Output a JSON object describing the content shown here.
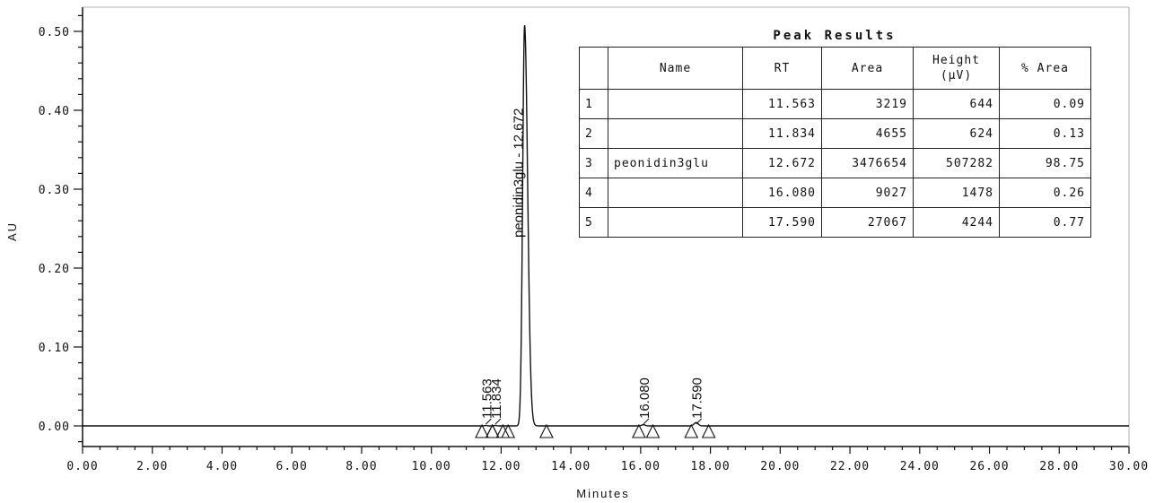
{
  "chart_data": {
    "type": "line",
    "title": "",
    "xlabel": "Minutes",
    "ylabel": "AU",
    "xlim": [
      0,
      30
    ],
    "ylim": [
      -0.02,
      0.525
    ],
    "x_ticks": [
      "0.00",
      "2.00",
      "4.00",
      "6.00",
      "8.00",
      "10.00",
      "12.00",
      "14.00",
      "16.00",
      "18.00",
      "20.00",
      "22.00",
      "24.00",
      "26.00",
      "28.00",
      "30.00"
    ],
    "y_ticks": [
      "0.00",
      "0.10",
      "0.20",
      "0.30",
      "0.40",
      "0.50"
    ],
    "baseline": 0.0,
    "peaks": [
      {
        "label": "11.563",
        "rt": 11.563,
        "height": 0.0006,
        "start": 11.45,
        "end": 11.75
      },
      {
        "label": "11.834",
        "rt": 11.834,
        "height": 0.0006,
        "start": 11.75,
        "end": 12.05
      },
      {
        "label": "peonidin3glu - 12.672",
        "rt": 12.672,
        "height": 0.5073,
        "start": 12.2,
        "end": 13.3
      },
      {
        "label": "16.080",
        "rt": 16.08,
        "height": 0.0015,
        "start": 15.95,
        "end": 16.35
      },
      {
        "label": "17.590",
        "rt": 17.59,
        "height": 0.0042,
        "start": 17.45,
        "end": 17.95
      }
    ]
  },
  "peak_results": {
    "title": "Peak Results",
    "columns": [
      "",
      "Name",
      "RT",
      "Area",
      "Height\n(µV)",
      "% Area"
    ],
    "header_height": [
      "Height",
      "(µV)"
    ],
    "rows": [
      [
        "1",
        "",
        "11.563",
        "3219",
        "644",
        "0.09"
      ],
      [
        "2",
        "",
        "11.834",
        "4655",
        "624",
        "0.13"
      ],
      [
        "3",
        "peonidin3glu",
        "12.672",
        "3476654",
        "507282",
        "98.75"
      ],
      [
        "4",
        "",
        "16.080",
        "9027",
        "1478",
        "0.26"
      ],
      [
        "5",
        "",
        "17.590",
        "27067",
        "4244",
        "0.77"
      ]
    ]
  }
}
